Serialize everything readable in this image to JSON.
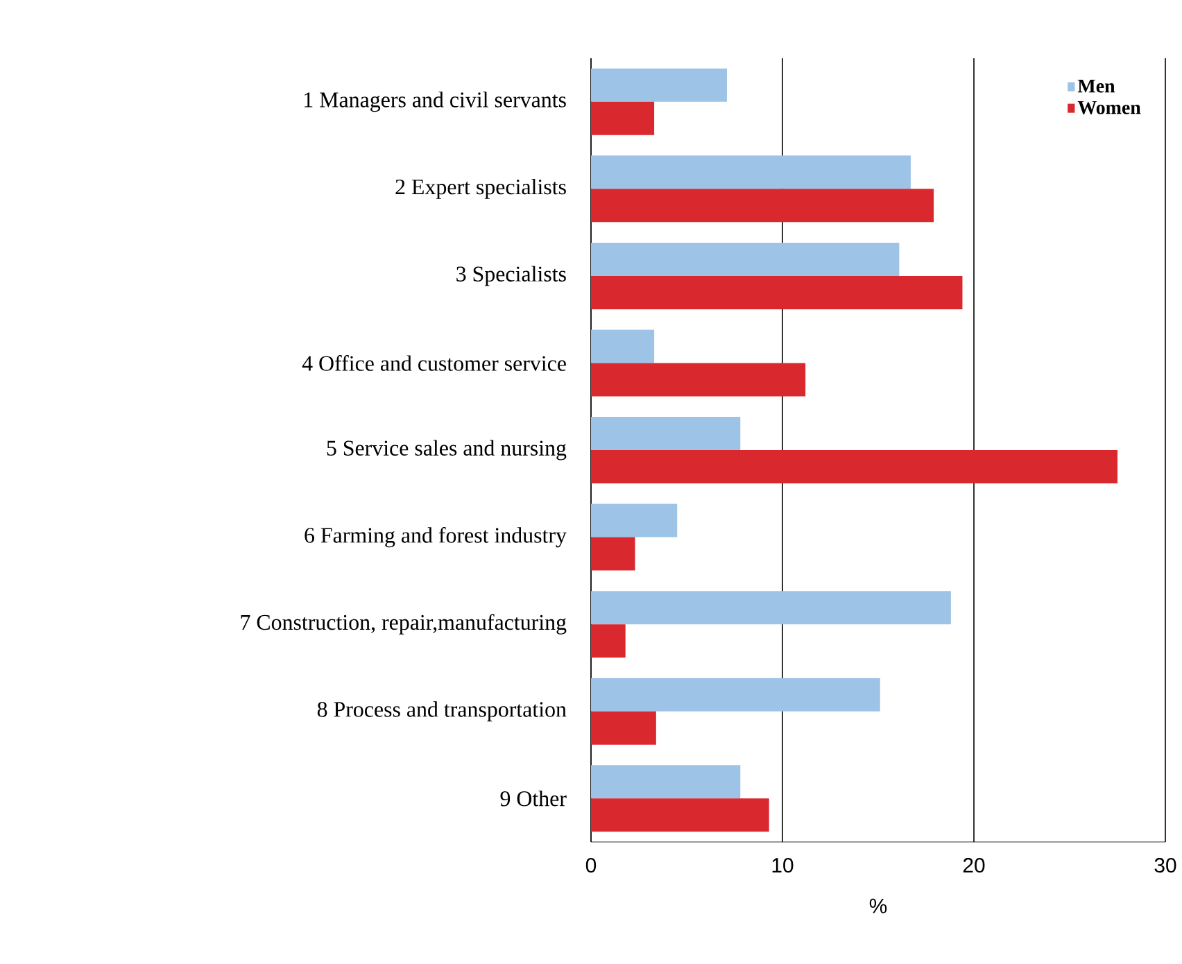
{
  "chart_data": {
    "type": "bar",
    "orientation": "horizontal",
    "categories": [
      "1 Managers and civil servants",
      "2 Expert specialists",
      "3 Specialists",
      "4 Office and customer service",
      "5 Service sales and nursing",
      "6 Farming and forest industry",
      "7 Construction, repair,manufacturing",
      "8 Process and transportation",
      "9 Other"
    ],
    "series": [
      {
        "name": "Men",
        "color": "#9dc3e6",
        "values": [
          7.1,
          16.7,
          16.1,
          3.3,
          7.8,
          4.5,
          18.8,
          15.1,
          7.8
        ]
      },
      {
        "name": "Women",
        "color": "#d9282e",
        "values": [
          3.3,
          17.9,
          19.4,
          11.2,
          27.5,
          2.3,
          1.8,
          3.4,
          9.3
        ]
      }
    ],
    "xlim": [
      0,
      30
    ],
    "xticks": [
      0,
      10,
      20,
      30
    ],
    "xlabel": "%",
    "grid": "x",
    "legend": "top right"
  }
}
